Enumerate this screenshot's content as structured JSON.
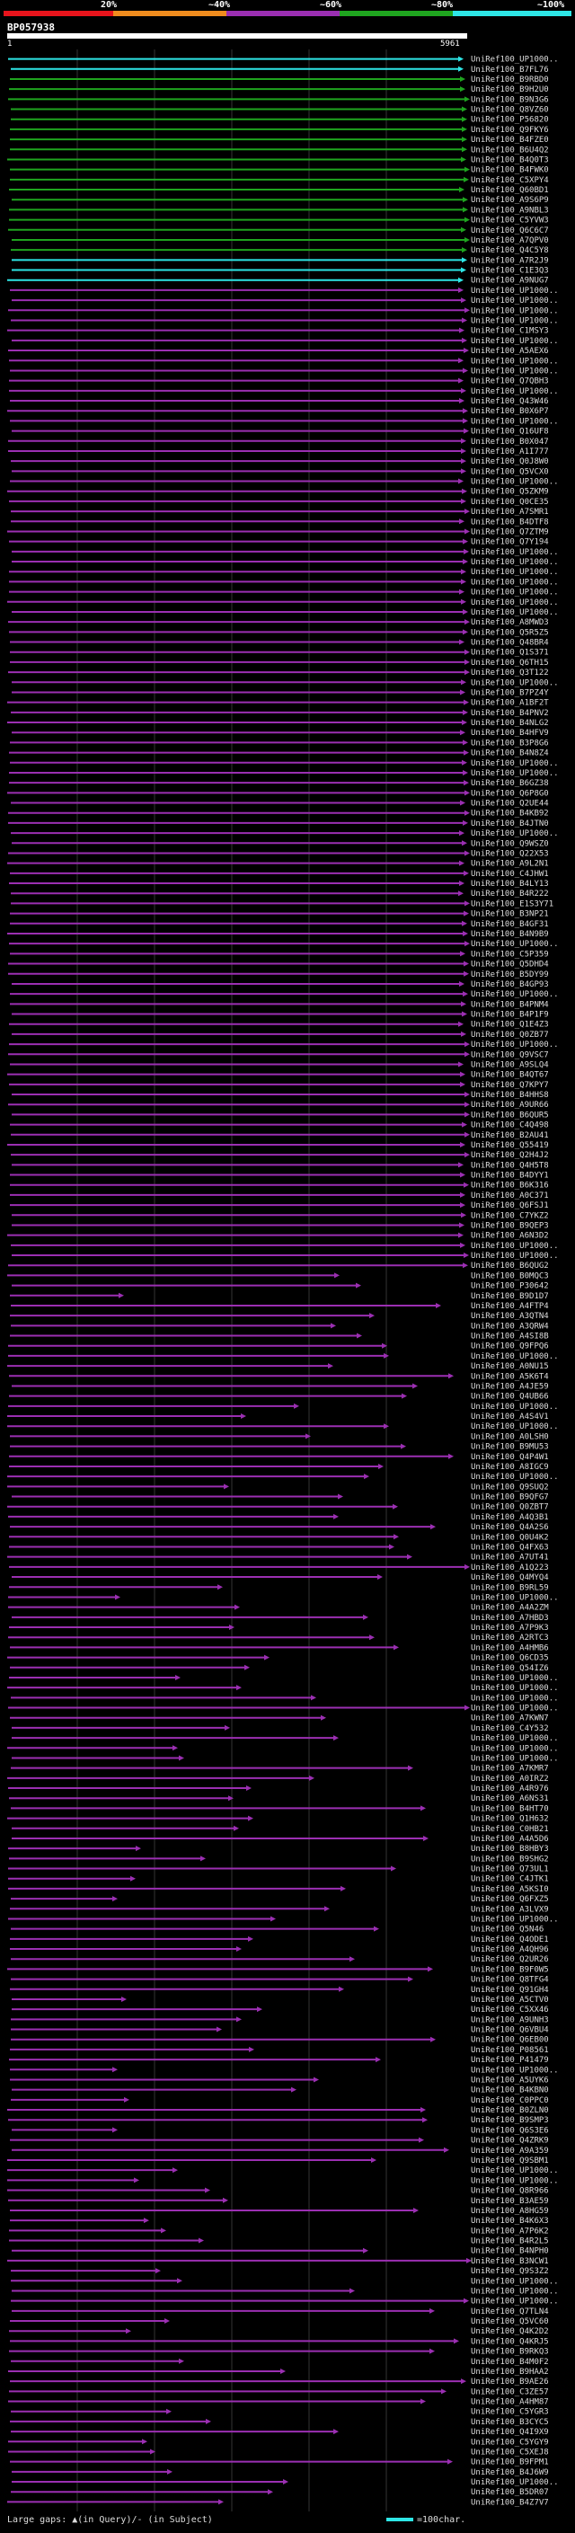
{
  "scale": {
    "labels": [
      "20%",
      "~40%",
      "~60%",
      "~80%",
      "~100%"
    ],
    "colors": [
      "#e8141c",
      "#f08c1e",
      "#9b2fb2",
      "#1fa51f",
      "#2ee6e6"
    ]
  },
  "query": {
    "id": "BP057938",
    "start": "1",
    "end": "5961"
  },
  "hits": [
    "UniRef100_UP1000..",
    "UniRef100_B7FL76",
    "UniRef100_B9RBD0",
    "UniRef100_B9H2U0",
    "UniRef100_B9N3G6",
    "UniRef100_Q8VZ60",
    "UniRef100_P56820",
    "UniRef100_Q9FKY6",
    "UniRef100_B4FZE0",
    "UniRef100_B6U4Q2",
    "UniRef100_B4Q0T3",
    "UniRef100_B4FWK0",
    "UniRef100_C5XPY4",
    "UniRef100_Q60BD1",
    "UniRef100_A9S6P9",
    "UniRef100_A9NBL3",
    "UniRef100_C5YVW3",
    "UniRef100_Q6C6C7",
    "UniRef100_A7QPV0",
    "UniRef100_Q4C5Y8",
    "UniRef100_A7R2J9",
    "UniRef100_C1E3Q3",
    "UniRef100_A9NUG7",
    "UniRef100_UP1000..",
    "UniRef100_UP1000..",
    "UniRef100_UP1000..",
    "UniRef100_UP1000..",
    "UniRef100_C1MSY3",
    "UniRef100_UP1000..",
    "UniRef100_A5AEX6",
    "UniRef100_UP1000..",
    "UniRef100_UP1000..",
    "UniRef100_Q7QBH3",
    "UniRef100_UP1000..",
    "UniRef100_Q43W46",
    "UniRef100_B0X6P7",
    "UniRef100_UP1000..",
    "UniRef100_Q16UF8",
    "UniRef100_B0X047",
    "UniRef100_A1I777",
    "UniRef100_Q0J8W0",
    "UniRef100_Q5VCX0",
    "UniRef100_UP1000..",
    "UniRef100_Q5ZKM9",
    "UniRef100_Q0CE35",
    "UniRef100_A7SMR1",
    "UniRef100_B4DTF8",
    "UniRef100_Q7ZTM9",
    "UniRef100_Q7Y194",
    "UniRef100_UP1000..",
    "UniRef100_UP1000..",
    "UniRef100_UP1000..",
    "UniRef100_UP1000..",
    "UniRef100_UP1000..",
    "UniRef100_UP1000..",
    "UniRef100_UP1000..",
    "UniRef100_A8MWD3",
    "UniRef100_Q5R5Z5",
    "UniRef100_Q48BR4",
    "UniRef100_Q1S371",
    "UniRef100_Q6TH15",
    "UniRef100_Q3T122",
    "UniRef100_UP1000..",
    "UniRef100_B7PZ4Y",
    "UniRef100_A1BF2T",
    "UniRef100_B4PNV2",
    "UniRef100_B4NLG2",
    "UniRef100_B4HFV9",
    "UniRef100_B3P8G6",
    "UniRef100_B4N8Z4",
    "UniRef100_UP1000..",
    "UniRef100_UP1000..",
    "UniRef100_B6GZ38",
    "UniRef100_Q6P8G0",
    "UniRef100_Q2UE44",
    "UniRef100_B4KB92",
    "UniRef100_B4JTN0",
    "UniRef100_UP1000..",
    "UniRef100_Q9WSZ0",
    "UniRef100_Q22X53",
    "UniRef100_A9L2N1",
    "UniRef100_C4JHW1",
    "UniRef100_B4LY13",
    "UniRef100_B4R222",
    "UniRef100_E1S3Y71",
    "UniRef100_B3NP21",
    "UniRef100_B4GF31",
    "UniRef100_B4N9B9",
    "UniRef100_UP1000..",
    "UniRef100_C5P359",
    "UniRef100_Q5DHD4",
    "UniRef100_B5DY99",
    "UniRef100_B4GP93",
    "UniRef100_UP1000..",
    "UniRef100_B4PNM4",
    "UniRef100_B4P1F9",
    "UniRef100_Q1E4Z3",
    "UniRef100_Q0ZB77",
    "UniRef100_UP1000..",
    "UniRef100_Q9VSC7",
    "UniRef100_A9SLQ4",
    "UniRef100_B4QT67",
    "UniRef100_Q7KPY7",
    "UniRef100_B4HHS8",
    "UniRef100_A9UR66",
    "UniRef100_B6QUR5",
    "UniRef100_C4Q498",
    "UniRef100_B2AU41",
    "UniRef100_Q55419",
    "UniRef100_Q2H4J2",
    "UniRef100_Q4H5T8",
    "UniRef100_B4DYY1",
    "UniRef100_B6K316",
    "UniRef100_A0C371",
    "UniRef100_Q6FSJ1",
    "UniRef100_C7YKZ2",
    "UniRef100_B9QEP3",
    "UniRef100_A6N3D2",
    "UniRef100_UP1000..",
    "UniRef100_UP1000..",
    "UniRef100_B6QUG2",
    "UniRef100_B0MQC3",
    "UniRef100_P30642",
    "UniRef100_B9D1D7",
    "UniRef100_A4FTP4",
    "UniRef100_A3QTN4",
    "UniRef100_A3QRW4",
    "UniRef100_A4SI8B",
    "UniRef100_Q9FPQ6",
    "UniRef100_UP1000..",
    "UniRef100_A0NU15",
    "UniRef100_A5K6T4",
    "UniRef100_A4JE59",
    "UniRef100_Q4UB66",
    "UniRef100_UP1000..",
    "UniRef100_A4S4V1",
    "UniRef100_UP1000..",
    "UniRef100_A0LSH0",
    "UniRef100_B9MU53",
    "UniRef100_Q4P4W1",
    "UniRef100_A8IGC9",
    "UniRef100_UP1000..",
    "UniRef100_Q9SUQ2",
    "UniRef100_B9QFG7",
    "UniRef100_Q0ZBT7",
    "UniRef100_A4Q3B1",
    "UniRef100_Q4A2S6",
    "UniRef100_Q0U4K2",
    "UniRef100_Q4FX63",
    "UniRef100_A7UT41",
    "UniRef100_A1Q223",
    "UniRef100_Q4MYQ4",
    "UniRef100_B9RL59",
    "UniRef100_UP1000..",
    "UniRef100_A4A2ZM",
    "UniRef100_A7HBD3",
    "UniRef100_A7P9K3",
    "UniRef100_A2RTC3",
    "UniRef100_A4HMB6",
    "UniRef100_Q6CD35",
    "UniRef100_Q54IZ6",
    "UniRef100_UP1000..",
    "UniRef100_UP1000..",
    "UniRef100_UP1000..",
    "UniRef100_UP1000..",
    "UniRef100_A7KWN7",
    "UniRef100_C4Y532",
    "UniRef100_UP1000..",
    "UniRef100_UP1000..",
    "UniRef100_UP1000..",
    "UniRef100_A7KMR7",
    "UniRef100_A0IRZ2",
    "UniRef100_A4R976",
    "UniRef100_A6NS31",
    "UniRef100_B4HT70",
    "UniRef100_Q1H632",
    "UniRef100_C0HB21",
    "UniRef100_A4A5D6",
    "UniRef100_B8HBY3",
    "UniRef100_B9SHG2",
    "UniRef100_Q73UL1",
    "UniRef100_C4JTK1",
    "UniRef100_A5KSI0",
    "UniRef100_Q6FXZ5",
    "UniRef100_A3LVX9",
    "UniRef100_UP1000..",
    "UniRef100_Q5N46",
    "UniRef100_Q4ODE1",
    "UniRef100_A4QH96",
    "UniRef100_Q2UR26",
    "UniRef100_B9F0W5",
    "UniRef100_Q8TFG4",
    "UniRef100_Q91GH4",
    "UniRef100_A5CTV0",
    "UniRef100_C5XX46",
    "UniRef100_A9UNH3",
    "UniRef100_Q6VBU4",
    "UniRef100_Q6EB00",
    "UniRef100_P08561",
    "UniRef100_P41479",
    "UniRef100_UP1000..",
    "UniRef100_A5UYK6",
    "UniRef100_B4KBN0",
    "UniRef100_C0PPC0",
    "UniRef100_B0ZLN0",
    "UniRef100_B9SMP3",
    "UniRef100_Q6S3E6",
    "UniRef100_Q4ZRK9",
    "UniRef100_A9A359",
    "UniRef100_Q9SBM1",
    "UniRef100_UP1000..",
    "UniRef100_UP1000..",
    "UniRef100_Q8R966",
    "UniRef100_B3AE59",
    "UniRef100_A8HG59",
    "UniRef100_B4K6X3",
    "UniRef100_A7P6K2",
    "UniRef100_B4R2L5",
    "UniRef100_B4NPH0",
    "UniRef100_B3NCW1",
    "UniRef100_Q9S3Z2",
    "UniRef100_UP1000..",
    "UniRef100_UP1000..",
    "UniRef100_UP1000..",
    "UniRef100_Q7TLN4",
    "UniRef100_Q5VC60",
    "UniRef100_Q4K2D2",
    "UniRef100_Q4KRJ5",
    "UniRef100_B9RKQ3",
    "UniRef100_B4M0F2",
    "UniRef100_B9HAA2",
    "UniRef100_B9AE26",
    "UniRef100_C3ZE57",
    "UniRef100_A4HM87",
    "UniRef100_C5YGR3",
    "UniRef100_B3CYC5",
    "UniRef100_Q4I9X9",
    "UniRef100_C5YGY9",
    "UniRef100_C5XEJ8",
    "UniRef100_B9FPM1",
    "UniRef100_B4J6W9",
    "UniRef100_UP1000..",
    "UniRef100_B5DR07",
    "UniRef100_B4Z7V7"
  ],
  "legend": {
    "gaps": "Large gaps: ▲(in Query)/- (in Subject)",
    "scale": "=100char."
  }
}
